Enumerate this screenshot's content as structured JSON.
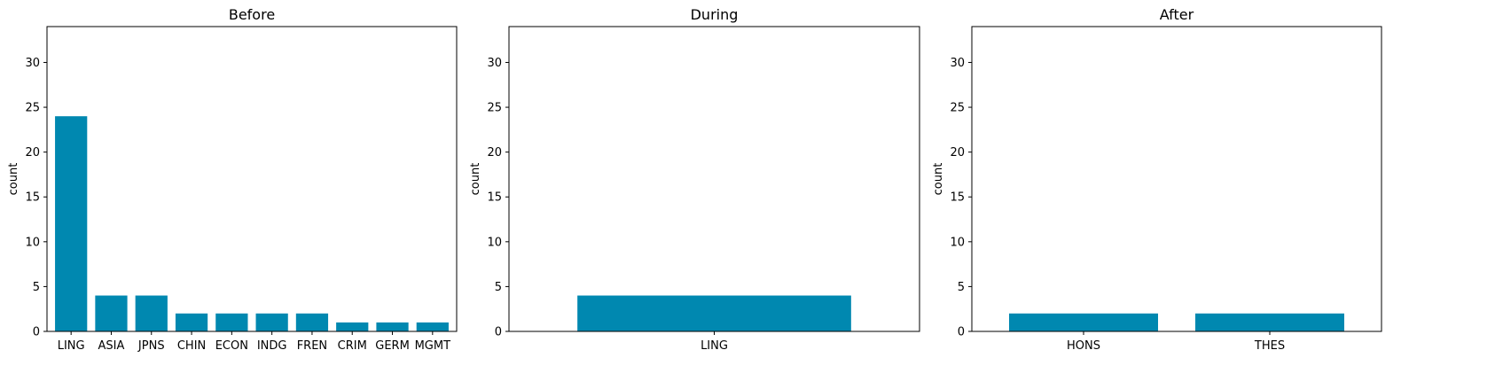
{
  "colors": {
    "bar": "#0088b0",
    "axis": "#000000",
    "background": "#ffffff"
  },
  "chart_data": [
    {
      "type": "bar",
      "title": "Before",
      "xlabel": "",
      "ylabel": "count",
      "ylim": [
        0,
        34
      ],
      "yticks": [
        0,
        5,
        10,
        15,
        20,
        25,
        30
      ],
      "grid": false,
      "categories": [
        "LING",
        "ASIA",
        "JPNS",
        "CHIN",
        "ECON",
        "INDG",
        "FREN",
        "CRIM",
        "GERM",
        "MGMT"
      ],
      "values": [
        24,
        4,
        4,
        2,
        2,
        2,
        2,
        1,
        1,
        1
      ]
    },
    {
      "type": "bar",
      "title": "During",
      "xlabel": "",
      "ylabel": "count",
      "ylim": [
        0,
        34
      ],
      "yticks": [
        0,
        5,
        10,
        15,
        20,
        25,
        30
      ],
      "grid": false,
      "categories": [
        "LING"
      ],
      "values": [
        4
      ]
    },
    {
      "type": "bar",
      "title": "After",
      "xlabel": "",
      "ylabel": "count",
      "ylim": [
        0,
        34
      ],
      "yticks": [
        0,
        5,
        10,
        15,
        20,
        25,
        30
      ],
      "grid": false,
      "categories": [
        "HONS",
        "THES"
      ],
      "values": [
        2,
        2
      ]
    }
  ]
}
